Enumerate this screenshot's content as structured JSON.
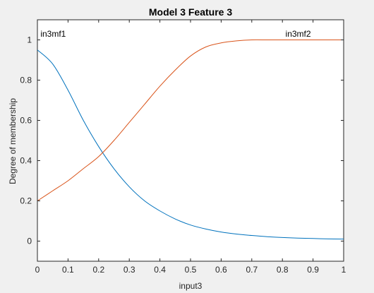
{
  "chart_data": {
    "type": "line",
    "title": "Model 3 Feature 3",
    "xlabel": "input3",
    "ylabel": "Degree of membership",
    "xlim": [
      0,
      1
    ],
    "ylim": [
      -0.1,
      1.1
    ],
    "xticks": [
      0,
      0.1,
      0.2,
      0.3,
      0.4,
      0.5,
      0.6,
      0.7,
      0.8,
      0.9,
      1
    ],
    "xtick_labels": [
      "0",
      "0.1",
      "0.2",
      "0.3",
      "0.4",
      "0.5",
      "0.6",
      "0.7",
      "0.8",
      "0.9",
      "1"
    ],
    "yticks": [
      0,
      0.2,
      0.4,
      0.6,
      0.8,
      1
    ],
    "ytick_labels": [
      "0",
      "0.2",
      "0.4",
      "0.6",
      "0.8",
      "1"
    ],
    "grid": false,
    "series": [
      {
        "name": "in3mf1",
        "color": "#0072bd",
        "x": [
          0,
          0.05,
          0.1,
          0.15,
          0.2,
          0.25,
          0.3,
          0.35,
          0.4,
          0.45,
          0.5,
          0.55,
          0.6,
          0.65,
          0.7,
          0.75,
          0.8,
          0.85,
          0.9,
          0.95,
          1
        ],
        "y": [
          0.95,
          0.88,
          0.75,
          0.6,
          0.47,
          0.36,
          0.27,
          0.2,
          0.15,
          0.11,
          0.08,
          0.06,
          0.045,
          0.035,
          0.028,
          0.022,
          0.018,
          0.015,
          0.013,
          0.011,
          0.01
        ]
      },
      {
        "name": "in3mf2",
        "color": "#d95319",
        "x": [
          0,
          0.05,
          0.1,
          0.15,
          0.2,
          0.25,
          0.3,
          0.35,
          0.4,
          0.45,
          0.5,
          0.55,
          0.6,
          0.65,
          0.7,
          0.75,
          0.8,
          0.85,
          0.9,
          0.95,
          1
        ],
        "y": [
          0.2,
          0.25,
          0.3,
          0.36,
          0.42,
          0.5,
          0.59,
          0.68,
          0.77,
          0.85,
          0.92,
          0.965,
          0.985,
          0.995,
          1.0,
          1.0,
          1.0,
          1.0,
          1.0,
          1.0,
          1.0
        ]
      }
    ],
    "annotations": [
      {
        "text": "in3mf1",
        "x": 0.01,
        "y": 1.03
      },
      {
        "text": "in3mf2",
        "x": 0.81,
        "y": 1.03
      }
    ]
  },
  "colors": {
    "figure_background": "#f0f0f0",
    "axes_background": "#ffffff",
    "axis_color": "#262626"
  }
}
